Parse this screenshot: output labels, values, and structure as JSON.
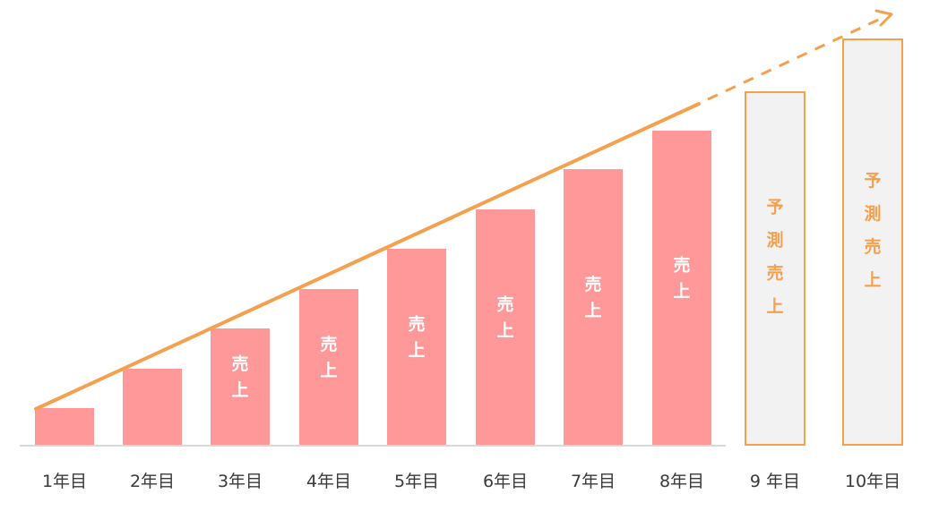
{
  "chart_data": {
    "type": "bar",
    "title": "",
    "xlabel": "",
    "ylabel": "",
    "categories": [
      "1年目",
      "2年目",
      "3年目",
      "4年目",
      "5年目",
      "6年目",
      "7年目",
      "8年目",
      "9 年目",
      "10年目"
    ],
    "series": [
      {
        "values": [
          42,
          86,
          131,
          175,
          220,
          264,
          309,
          352,
          null,
          null
        ],
        "labels": [
          "",
          "",
          "売上",
          "売上",
          "売上",
          "売上",
          "売上",
          "売上",
          "",
          ""
        ],
        "color": "#ff9999"
      },
      {
        "values": [
          null,
          null,
          null,
          null,
          null,
          null,
          null,
          null,
          395,
          454
        ],
        "labels": [
          "",
          "",
          "",
          "",
          "",
          "",
          "",
          "",
          "予測売上",
          "予測売上"
        ],
        "color": "#f2f2f2",
        "edge_color": "#f5a04d",
        "label_color": "#f5a04d"
      }
    ],
    "trend_line": {
      "color": "#f5a04d",
      "solid_from": 1,
      "solid_to": 8.4,
      "dashed_to": 10,
      "start_value": 42,
      "end_value": 485
    },
    "ylim": [
      0,
      500
    ],
    "grid": false,
    "legend": "none"
  }
}
